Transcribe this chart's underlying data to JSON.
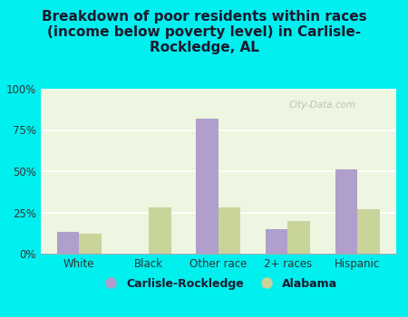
{
  "title": "Breakdown of poor residents within races\n(income below poverty level) in Carlisle-\nRockledge, AL",
  "categories": [
    "White",
    "Black",
    "Other race",
    "2+ races",
    "Hispanic"
  ],
  "carlisle_values": [
    13,
    0,
    82,
    15,
    51
  ],
  "alabama_values": [
    12,
    28,
    28,
    20,
    27
  ],
  "carlisle_color": "#b09fcc",
  "alabama_color": "#c8d49a",
  "background_color": "#00efef",
  "plot_bg_color": "#eef5e0",
  "yticks": [
    0,
    25,
    50,
    75,
    100
  ],
  "ytick_labels": [
    "0%",
    "25%",
    "50%",
    "75%",
    "100%"
  ],
  "legend_labels": [
    "Carlisle-Rockledge",
    "Alabama"
  ],
  "watermark": "City-Data.com",
  "title_fontsize": 11,
  "bar_width": 0.32
}
